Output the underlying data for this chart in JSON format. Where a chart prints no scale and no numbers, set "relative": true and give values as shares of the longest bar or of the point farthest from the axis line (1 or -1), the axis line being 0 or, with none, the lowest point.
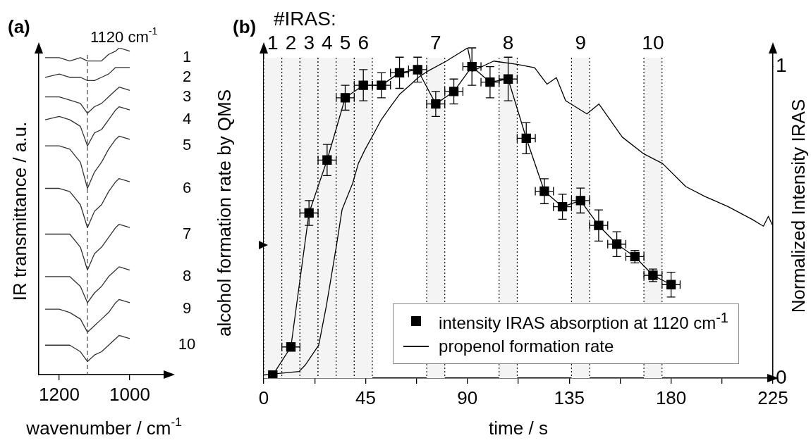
{
  "chart_data": [
    {
      "type": "line",
      "title": "(a)",
      "xlabel": "wavenumber / cm$^{-1}$",
      "ylabel": "IR transmittance / a.u.",
      "relative": true,
      "marker": "none",
      "xlim": [
        1258,
        888
      ],
      "xticks": [
        1200,
        1000
      ],
      "x": [
        1240,
        1200,
        1170,
        1140,
        1120,
        1100,
        1080,
        1060,
        1040,
        1030,
        1000
      ],
      "ref_lines": [
        {
          "axis": "x",
          "value": 1120,
          "label": "1120 cm$^{-1}$",
          "line_style": "dashed"
        }
      ],
      "series": [
        {
          "name": "1",
          "color": "#333333",
          "values": [
            0.97,
            0.97,
            0.96,
            0.97,
            0.96,
            0.96,
            0.96,
            0.98,
            0.99,
            1.0,
            0.99
          ]
        },
        {
          "name": "2",
          "color": "#333333",
          "values": [
            0.91,
            0.92,
            0.91,
            0.91,
            0.9,
            0.9,
            0.91,
            0.92,
            0.94,
            0.94,
            0.94
          ]
        },
        {
          "name": "3",
          "color": "#333333",
          "values": [
            0.85,
            0.85,
            0.84,
            0.83,
            0.8,
            0.82,
            0.83,
            0.85,
            0.87,
            0.88,
            0.87
          ]
        },
        {
          "name": "4",
          "color": "#333333",
          "values": [
            0.78,
            0.79,
            0.78,
            0.76,
            0.7,
            0.74,
            0.75,
            0.78,
            0.81,
            0.82,
            0.81
          ]
        },
        {
          "name": "5",
          "color": "#333333",
          "values": [
            0.7,
            0.7,
            0.69,
            0.65,
            0.57,
            0.62,
            0.65,
            0.69,
            0.72,
            0.73,
            0.72
          ]
        },
        {
          "name": "6",
          "color": "#333333",
          "values": [
            0.57,
            0.57,
            0.56,
            0.52,
            0.45,
            0.5,
            0.52,
            0.56,
            0.59,
            0.6,
            0.59
          ]
        },
        {
          "name": "7",
          "color": "#333333",
          "values": [
            0.43,
            0.43,
            0.43,
            0.39,
            0.32,
            0.37,
            0.39,
            0.42,
            0.45,
            0.46,
            0.45
          ]
        },
        {
          "name": "8",
          "color": "#333333",
          "values": [
            0.3,
            0.3,
            0.3,
            0.27,
            0.22,
            0.25,
            0.27,
            0.3,
            0.32,
            0.33,
            0.32
          ]
        },
        {
          "name": "9",
          "color": "#333333",
          "values": [
            0.2,
            0.2,
            0.19,
            0.17,
            0.13,
            0.15,
            0.17,
            0.19,
            0.22,
            0.23,
            0.22
          ]
        },
        {
          "name": "10",
          "color": "#333333",
          "values": [
            0.09,
            0.09,
            0.09,
            0.07,
            0.04,
            0.06,
            0.07,
            0.09,
            0.11,
            0.12,
            0.11
          ]
        }
      ]
    },
    {
      "type": "line",
      "title": "(b)",
      "xlabel": "time / s",
      "ylabel": "alcohol formation rate by QMS",
      "y2label": "Normalized Intensity IRAS",
      "annotations": [
        "#IRAS:"
      ],
      "relative": true,
      "legend": "bottom right",
      "xlim": [
        0,
        225
      ],
      "xticks": [
        0,
        {
          "value": 22.5,
          "label": null
        },
        45,
        {
          "value": 67.5,
          "label": null
        },
        90,
        {
          "value": 112.5,
          "label": null
        },
        135,
        {
          "value": 157.5,
          "label": null
        },
        180,
        {
          "value": 202.5,
          "label": null
        },
        225
      ],
      "y2lim": [
        0,
        1.06
      ],
      "y2ticks": [
        0,
        1
      ],
      "bands": [
        {
          "axis": "x",
          "from": 0,
          "to": 8,
          "label": "1",
          "color": "#f4f4f4"
        },
        {
          "axis": "x",
          "from": 8,
          "to": 16,
          "label": "2",
          "color": "#f4f4f4"
        },
        {
          "axis": "x",
          "from": 16,
          "to": 24,
          "label": "3",
          "color": "#f4f4f4"
        },
        {
          "axis": "x",
          "from": 24,
          "to": 32,
          "label": "4",
          "color": "#f4f4f4"
        },
        {
          "axis": "x",
          "from": 32,
          "to": 40,
          "label": "5",
          "color": "#f4f4f4"
        },
        {
          "axis": "x",
          "from": 40,
          "to": 48,
          "label": "6",
          "color": "#f4f4f4"
        },
        {
          "axis": "x",
          "from": 72,
          "to": 80,
          "label": "7",
          "color": "#f4f4f4"
        },
        {
          "axis": "x",
          "from": 104,
          "to": 112,
          "label": "8",
          "color": "#f4f4f4"
        },
        {
          "axis": "x",
          "from": 136,
          "to": 144,
          "label": "9",
          "color": "#f4f4f4"
        },
        {
          "axis": "x",
          "from": 168,
          "to": 176,
          "label": "10",
          "color": "#f4f4f4"
        }
      ],
      "series": [
        {
          "name": "intensity IRAS absorption at 1120 cm$^{-1}$",
          "color": "#000000",
          "axis": "y2",
          "marker": "square",
          "x": [
            4,
            12,
            20,
            28,
            36,
            44,
            52,
            60,
            68,
            76,
            84,
            92,
            100,
            108,
            116,
            124,
            132,
            140,
            148,
            156,
            164,
            172,
            180
          ],
          "values": [
            0.01,
            0.1,
            0.53,
            0.7,
            0.9,
            0.94,
            0.94,
            0.98,
            0.99,
            0.88,
            0.92,
            1.0,
            0.95,
            0.96,
            0.77,
            0.6,
            0.55,
            0.57,
            0.49,
            0.43,
            0.39,
            0.33,
            0.3
          ],
          "errors": [
            null,
            null,
            0.04,
            0.05,
            0.04,
            0.05,
            0.04,
            0.05,
            0.04,
            0.04,
            0.04,
            0.06,
            0.05,
            0.07,
            0.05,
            0.04,
            0.04,
            0.04,
            0.05,
            0.04,
            0.02,
            0.02,
            0.04
          ],
          "xerrors": [
            null,
            4,
            4,
            4,
            4,
            4,
            4,
            4,
            4,
            4,
            4,
            4,
            4,
            4,
            4,
            4,
            4,
            4,
            4,
            4,
            4,
            4,
            4
          ]
        },
        {
          "name": "propenol formation rate",
          "color": "#000000",
          "axis": "y",
          "marker": "none",
          "x": [
            0,
            15.6,
            18.4,
            24.3,
            27.7,
            32.1,
            34.6,
            39.3,
            41.8,
            44.6,
            48.6,
            51.7,
            55.8,
            60.1,
            65.1,
            68.2,
            72.6,
            80.7,
            90.1,
            92.3,
            101.6,
            111.9,
            119.7,
            125.2,
            129.3,
            133.4,
            142.8,
            148.1,
            158.4,
            167.7,
            176.2,
            186.5,
            195,
            205,
            216,
            220.8,
            223,
            225
          ],
          "values": [
            0.01,
            0.02,
            0.04,
            0.1,
            0.22,
            0.4,
            0.51,
            0.59,
            0.65,
            0.69,
            0.74,
            0.78,
            0.82,
            0.86,
            0.89,
            0.91,
            0.93,
            0.96,
            1.0,
            0.93,
            0.96,
            0.95,
            0.94,
            0.89,
            0.91,
            0.84,
            0.8,
            0.83,
            0.73,
            0.68,
            0.65,
            0.58,
            0.55,
            0.52,
            0.48,
            0.46,
            0.49,
            0.46
          ]
        }
      ]
    }
  ]
}
